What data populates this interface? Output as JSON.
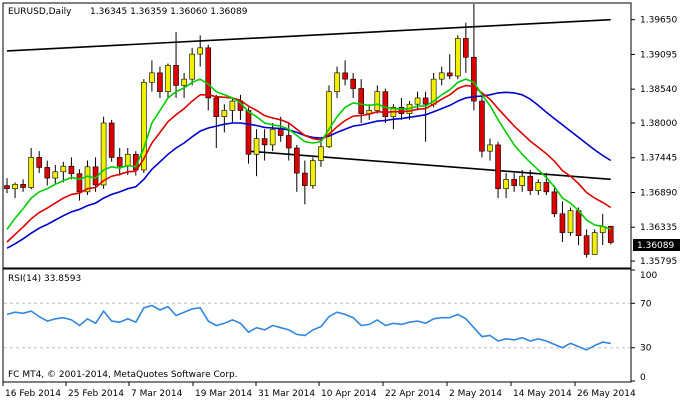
{
  "header": {
    "symbol": "EURUSD,Daily",
    "ohlc": "1.36345 1.36359 1.36060 1.36089"
  },
  "price_panel": {
    "current_price": "1.36089",
    "levels": [
      "1.39650",
      "1.39095",
      "1.38540",
      "1.38000",
      "1.37445",
      "1.36890",
      "1.36335",
      "1.35795"
    ]
  },
  "rsi_panel": {
    "label": "RSI(14) 33.8593",
    "levels": [
      "100",
      "70",
      "30",
      "0"
    ]
  },
  "footer": {
    "copyright": "FC MT4, © 2001-2014, MetaQuotes Software Corp."
  },
  "x_axis": {
    "labels": [
      "16 Feb 2014",
      "25 Feb 2014",
      "7 Mar 2014",
      "19 Mar 2014",
      "31 Mar 2014",
      "10 Apr 2014",
      "22 Apr 2014",
      "2 May 2014",
      "14 May 2014",
      "26 May 2014"
    ]
  },
  "colors": {
    "bull": "#f0f000",
    "bear": "#dd0000",
    "ma_fast": "#00cc00",
    "ma_mid": "#dd0000",
    "ma_slow": "#0000cc",
    "rsi": "#3388dd",
    "trend": "#000000"
  },
  "chart_data": {
    "type": "candlestick",
    "candles": [
      [
        1.37,
        1.3712,
        1.3688,
        1.3695
      ],
      [
        1.3695,
        1.3705,
        1.368,
        1.3702
      ],
      [
        1.3702,
        1.371,
        1.369,
        1.3697
      ],
      [
        1.3697,
        1.376,
        1.3694,
        1.3745
      ],
      [
        1.3745,
        1.3755,
        1.372,
        1.3729
      ],
      [
        1.3729,
        1.374,
        1.37,
        1.3712
      ],
      [
        1.3712,
        1.3733,
        1.3702,
        1.3722
      ],
      [
        1.3722,
        1.3738,
        1.3705,
        1.3731
      ],
      [
        1.3731,
        1.3745,
        1.371,
        1.3719
      ],
      [
        1.3719,
        1.3726,
        1.3676,
        1.369
      ],
      [
        1.369,
        1.374,
        1.3685,
        1.373
      ],
      [
        1.373,
        1.3745,
        1.369,
        1.3701
      ],
      [
        1.3701,
        1.381,
        1.3695,
        1.38
      ],
      [
        1.38,
        1.3805,
        1.3738,
        1.3745
      ],
      [
        1.3745,
        1.376,
        1.3716,
        1.3731
      ],
      [
        1.3731,
        1.376,
        1.3717,
        1.375
      ],
      [
        1.375,
        1.3755,
        1.3716,
        1.3725
      ],
      [
        1.3725,
        1.387,
        1.372,
        1.3865
      ],
      [
        1.3865,
        1.39,
        1.385,
        1.388
      ],
      [
        1.388,
        1.389,
        1.384,
        1.385
      ],
      [
        1.385,
        1.3895,
        1.384,
        1.3892
      ],
      [
        1.3892,
        1.3945,
        1.384,
        1.386
      ],
      [
        1.386,
        1.388,
        1.384,
        1.387
      ],
      [
        1.387,
        1.392,
        1.386,
        1.391
      ],
      [
        1.391,
        1.394,
        1.389,
        1.392
      ],
      [
        1.392,
        1.3925,
        1.382,
        1.384
      ],
      [
        1.384,
        1.3845,
        1.376,
        1.381
      ],
      [
        1.381,
        1.383,
        1.3785,
        1.382
      ],
      [
        1.382,
        1.384,
        1.38,
        1.3835
      ],
      [
        1.3835,
        1.3845,
        1.3805,
        1.382
      ],
      [
        1.382,
        1.3825,
        1.3735,
        1.375
      ],
      [
        1.375,
        1.379,
        1.3715,
        1.3775
      ],
      [
        1.3775,
        1.379,
        1.374,
        1.3765
      ],
      [
        1.3765,
        1.38,
        1.3755,
        1.379
      ],
      [
        1.379,
        1.381,
        1.377,
        1.378
      ],
      [
        1.378,
        1.38,
        1.374,
        1.376
      ],
      [
        1.376,
        1.3765,
        1.369,
        1.372
      ],
      [
        1.372,
        1.374,
        1.367,
        1.37
      ],
      [
        1.37,
        1.3745,
        1.3695,
        1.374
      ],
      [
        1.374,
        1.377,
        1.373,
        1.3762
      ],
      [
        1.3762,
        1.386,
        1.376,
        1.385
      ],
      [
        1.385,
        1.389,
        1.384,
        1.388
      ],
      [
        1.388,
        1.39,
        1.386,
        1.387
      ],
      [
        1.387,
        1.388,
        1.384,
        1.3855
      ],
      [
        1.3855,
        1.387,
        1.38,
        1.3815
      ],
      [
        1.3815,
        1.383,
        1.3805,
        1.382
      ],
      [
        1.382,
        1.386,
        1.3815,
        1.385
      ],
      [
        1.385,
        1.3855,
        1.38,
        1.381
      ],
      [
        1.381,
        1.383,
        1.379,
        1.3825
      ],
      [
        1.3825,
        1.384,
        1.3805,
        1.3815
      ],
      [
        1.3815,
        1.3835,
        1.3805,
        1.383
      ],
      [
        1.383,
        1.385,
        1.382,
        1.384
      ],
      [
        1.384,
        1.385,
        1.377,
        1.383
      ],
      [
        1.383,
        1.388,
        1.3825,
        1.387
      ],
      [
        1.387,
        1.389,
        1.386,
        1.388
      ],
      [
        1.388,
        1.391,
        1.387,
        1.3875
      ],
      [
        1.3875,
        1.394,
        1.387,
        1.3935
      ],
      [
        1.3935,
        1.396,
        1.388,
        1.3905
      ],
      [
        1.3905,
        1.399,
        1.382,
        1.3835
      ],
      [
        1.3835,
        1.3845,
        1.3745,
        1.3755
      ],
      [
        1.3755,
        1.3775,
        1.374,
        1.3765
      ],
      [
        1.3765,
        1.377,
        1.368,
        1.3695
      ],
      [
        1.3695,
        1.372,
        1.368,
        1.371
      ],
      [
        1.371,
        1.372,
        1.369,
        1.37
      ],
      [
        1.37,
        1.3725,
        1.369,
        1.3715
      ],
      [
        1.3715,
        1.3725,
        1.3685,
        1.3692
      ],
      [
        1.3692,
        1.371,
        1.3685,
        1.3705
      ],
      [
        1.3705,
        1.372,
        1.3685,
        1.369
      ],
      [
        1.369,
        1.37,
        1.365,
        1.3655
      ],
      [
        1.3655,
        1.3675,
        1.361,
        1.3625
      ],
      [
        1.3625,
        1.3665,
        1.362,
        1.366
      ],
      [
        1.366,
        1.3665,
        1.3605,
        1.362
      ],
      [
        1.362,
        1.363,
        1.3585,
        1.359
      ],
      [
        1.359,
        1.363,
        1.359,
        1.3625
      ],
      [
        1.3625,
        1.3655,
        1.3605,
        1.3635
      ],
      [
        1.3635,
        1.3636,
        1.3606,
        1.3609
      ]
    ],
    "ma_fast": [
      1.363,
      1.3648,
      1.3663,
      1.368,
      1.369,
      1.3695,
      1.3702,
      1.3708,
      1.3713,
      1.371,
      1.3715,
      1.3712,
      1.3725,
      1.373,
      1.3728,
      1.3732,
      1.373,
      1.376,
      1.38,
      1.382,
      1.384,
      1.385,
      1.3856,
      1.3865,
      1.387,
      1.3862,
      1.385,
      1.3845,
      1.384,
      1.3832,
      1.3818,
      1.381,
      1.38,
      1.3797,
      1.3795,
      1.379,
      1.378,
      1.377,
      1.3768,
      1.377,
      1.379,
      1.381,
      1.3825,
      1.3832,
      1.383,
      1.3828,
      1.383,
      1.3825,
      1.3823,
      1.3822,
      1.3823,
      1.3827,
      1.3827,
      1.3835,
      1.3845,
      1.3853,
      1.3865,
      1.387,
      1.3865,
      1.3845,
      1.3828,
      1.3805,
      1.3785,
      1.3765,
      1.375,
      1.3737,
      1.3725,
      1.3713,
      1.3698,
      1.368,
      1.3672,
      1.366,
      1.3645,
      1.3637,
      1.3635,
      1.363
    ],
    "ma_mid": [
      1.361,
      1.3622,
      1.3634,
      1.3647,
      1.3657,
      1.3664,
      1.3672,
      1.368,
      1.3686,
      1.3688,
      1.3695,
      1.3697,
      1.3708,
      1.3715,
      1.3718,
      1.3722,
      1.3723,
      1.3743,
      1.3768,
      1.3785,
      1.3802,
      1.3813,
      1.3823,
      1.3835,
      1.3845,
      1.3845,
      1.3842,
      1.3841,
      1.384,
      1.3836,
      1.3827,
      1.382,
      1.3812,
      1.3808,
      1.3805,
      1.38,
      1.379,
      1.378,
      1.3775,
      1.3773,
      1.3782,
      1.3794,
      1.3804,
      1.3811,
      1.3812,
      1.3814,
      1.3818,
      1.3817,
      1.3818,
      1.3818,
      1.3819,
      1.3822,
      1.3823,
      1.383,
      1.3838,
      1.3845,
      1.3855,
      1.386,
      1.3858,
      1.3848,
      1.3838,
      1.3823,
      1.3809,
      1.3795,
      1.3783,
      1.3771,
      1.3761,
      1.3751,
      1.3739,
      1.3724,
      1.3715,
      1.3703,
      1.3689,
      1.368,
      1.3673,
      1.3665
    ],
    "ma_slow": [
      1.36,
      1.3607,
      1.3615,
      1.3624,
      1.3632,
      1.3638,
      1.3645,
      1.3652,
      1.3658,
      1.3662,
      1.3668,
      1.3672,
      1.368,
      1.3686,
      1.369,
      1.3695,
      1.3698,
      1.371,
      1.3726,
      1.3738,
      1.375,
      1.376,
      1.3768,
      1.3778,
      1.3787,
      1.3792,
      1.3795,
      1.3798,
      1.38,
      1.38,
      1.3798,
      1.3796,
      1.3793,
      1.3792,
      1.3791,
      1.3789,
      1.3785,
      1.378,
      1.3777,
      1.3776,
      1.3779,
      1.3785,
      1.379,
      1.3795,
      1.3797,
      1.38,
      1.3803,
      1.3804,
      1.3806,
      1.3807,
      1.3809,
      1.3811,
      1.3813,
      1.3818,
      1.3823,
      1.3828,
      1.3835,
      1.384,
      1.3842,
      1.3843,
      1.3845,
      1.3848,
      1.3849,
      1.3848,
      1.3845,
      1.3838,
      1.3828,
      1.3817,
      1.3807,
      1.3797,
      1.3787,
      1.3777,
      1.3767,
      1.3757,
      1.3748,
      1.374
    ],
    "rsi": [
      60,
      62,
      61,
      63,
      58,
      54,
      56,
      57,
      55,
      50,
      56,
      52,
      63,
      54,
      53,
      56,
      53,
      66,
      68,
      64,
      67,
      59,
      62,
      65,
      66,
      54,
      50,
      52,
      55,
      52,
      44,
      48,
      46,
      50,
      48,
      46,
      42,
      41,
      46,
      49,
      58,
      62,
      60,
      57,
      50,
      51,
      55,
      50,
      52,
      51,
      53,
      54,
      52,
      56,
      57,
      57,
      60,
      56,
      48,
      40,
      41,
      36,
      38,
      37,
      39,
      36,
      38,
      36,
      33,
      30,
      34,
      31,
      28,
      32,
      35,
      33.86
    ],
    "trend_lines": [
      {
        "p1": [
          0,
          1.3915
        ],
        "p2": [
          75,
          1.3965
        ]
      },
      {
        "p1": [
          30,
          1.3755
        ],
        "p2": [
          75,
          1.371
        ]
      }
    ],
    "ylim_price": [
      1.357,
      1.399
    ],
    "ylim_rsi": [
      0,
      100
    ],
    "rsi_levels": [
      70,
      30
    ]
  }
}
